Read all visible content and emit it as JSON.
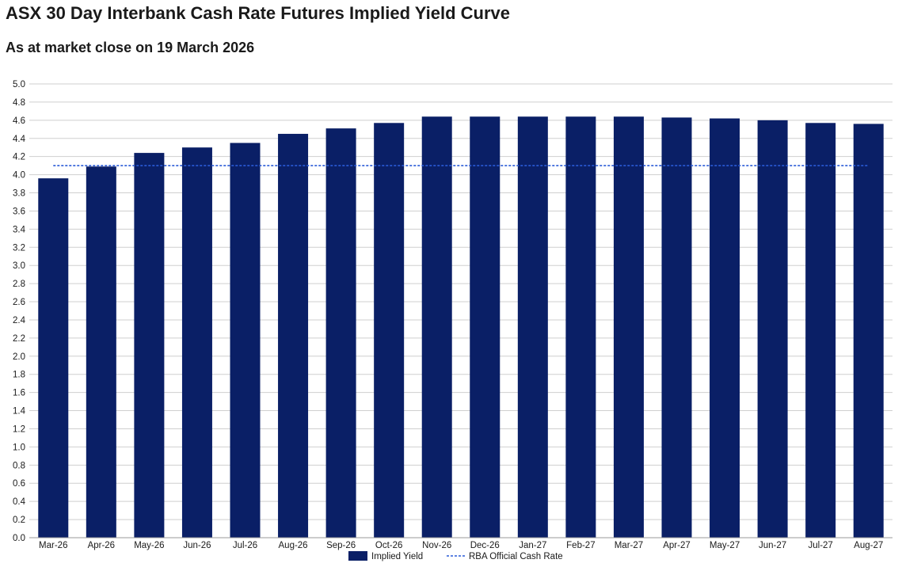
{
  "chart_data": {
    "type": "bar",
    "title": "ASX 30 Day Interbank Cash Rate Futures Implied Yield Curve",
    "subtitle": "As at market close on 19 March 2026",
    "categories": [
      "Mar-26",
      "Apr-26",
      "May-26",
      "Jun-26",
      "Jul-26",
      "Aug-26",
      "Sep-26",
      "Oct-26",
      "Nov-26",
      "Dec-26",
      "Jan-27",
      "Feb-27",
      "Mar-27",
      "Apr-27",
      "May-27",
      "Jun-27",
      "Jul-27",
      "Aug-27"
    ],
    "series": [
      {
        "name": "Implied Yield",
        "type": "bar",
        "color": "#0a1f66",
        "values": [
          3.96,
          4.09,
          4.24,
          4.3,
          4.35,
          4.45,
          4.51,
          4.57,
          4.64,
          4.64,
          4.64,
          4.64,
          4.64,
          4.63,
          4.62,
          4.6,
          4.57,
          4.56
        ]
      },
      {
        "name": "RBA Official Cash Rate",
        "type": "line",
        "style": "dashed",
        "color": "#2a5bd7",
        "value": 4.1
      }
    ],
    "ylim": [
      0,
      5.0
    ],
    "ytick_step": 0.2,
    "yticks": [
      "0.0",
      "0.2",
      "0.4",
      "0.6",
      "0.8",
      "1.0",
      "1.2",
      "1.4",
      "1.6",
      "1.8",
      "2.0",
      "2.2",
      "2.4",
      "2.6",
      "2.8",
      "3.0",
      "3.2",
      "3.4",
      "3.6",
      "3.8",
      "4.0",
      "4.2",
      "4.4",
      "4.6",
      "4.8",
      "5.0"
    ],
    "grid": true,
    "legend_position": "bottom-center",
    "xlabel": "",
    "ylabel": ""
  }
}
